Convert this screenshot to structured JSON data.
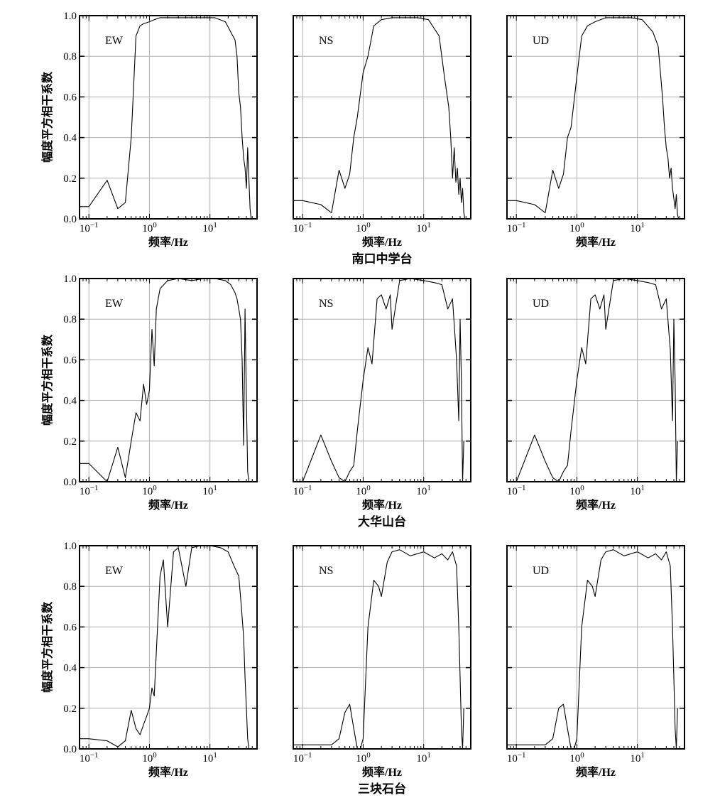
{
  "ylabel": "幅度平方相干系数",
  "xlabel": "频率/Hz",
  "components": [
    "EW",
    "NS",
    "UD"
  ],
  "rows": [
    {
      "station": "南口中学台"
    },
    {
      "station": "大华山台"
    },
    {
      "station": "三块石台"
    }
  ],
  "chart_data": {
    "type": "line",
    "xscale": "log",
    "xlim": [
      0.07,
      60
    ],
    "ylim": [
      0.0,
      1.0
    ],
    "grid": true,
    "x_ticks": [
      "10^-1",
      "10^0",
      "10^1"
    ],
    "y_ticks": [
      "0.0",
      "0.2",
      "0.4",
      "0.6",
      "0.8",
      "1.0"
    ],
    "panels": [
      {
        "station": "南口中学台",
        "component": "EW",
        "x": [
          0.07,
          0.1,
          0.2,
          0.3,
          0.4,
          0.5,
          0.6,
          0.7,
          0.8,
          1.0,
          1.2,
          1.5,
          2,
          3,
          5,
          8,
          12,
          18,
          22,
          26,
          28,
          30,
          32,
          34,
          36,
          38,
          40,
          42,
          44,
          46,
          48
        ],
        "y": [
          0.06,
          0.06,
          0.19,
          0.05,
          0.08,
          0.4,
          0.9,
          0.95,
          0.96,
          0.97,
          0.98,
          0.99,
          0.99,
          0.99,
          0.99,
          0.99,
          0.99,
          0.97,
          0.92,
          0.88,
          0.8,
          0.62,
          0.55,
          0.4,
          0.3,
          0.25,
          0.15,
          0.35,
          0.2,
          0.05,
          0.0
        ]
      },
      {
        "station": "南口中学台",
        "component": "NS",
        "x": [
          0.07,
          0.1,
          0.2,
          0.3,
          0.4,
          0.5,
          0.6,
          0.7,
          0.8,
          1.0,
          1.2,
          1.5,
          2,
          3,
          5,
          8,
          12,
          18,
          22,
          26,
          28,
          30,
          32,
          34,
          36,
          38,
          40,
          42,
          44,
          46,
          48
        ],
        "y": [
          0.09,
          0.09,
          0.07,
          0.03,
          0.24,
          0.15,
          0.22,
          0.4,
          0.5,
          0.72,
          0.8,
          0.95,
          0.98,
          0.99,
          0.99,
          0.99,
          0.98,
          0.9,
          0.7,
          0.55,
          0.4,
          0.2,
          0.35,
          0.18,
          0.25,
          0.12,
          0.2,
          0.08,
          0.15,
          0.03,
          0.0
        ]
      },
      {
        "station": "南口中学台",
        "component": "UD",
        "x": [
          0.07,
          0.1,
          0.2,
          0.3,
          0.4,
          0.5,
          0.6,
          0.7,
          0.8,
          1.0,
          1.2,
          1.5,
          2,
          3,
          5,
          8,
          12,
          18,
          22,
          26,
          28,
          30,
          32,
          34,
          36,
          38,
          40,
          42,
          44,
          46,
          48
        ],
        "y": [
          0.09,
          0.09,
          0.07,
          0.03,
          0.24,
          0.15,
          0.22,
          0.4,
          0.45,
          0.7,
          0.9,
          0.95,
          0.97,
          0.99,
          0.99,
          0.99,
          0.98,
          0.92,
          0.85,
          0.6,
          0.45,
          0.35,
          0.3,
          0.2,
          0.25,
          0.15,
          0.1,
          0.05,
          0.12,
          0.02,
          0.0
        ]
      },
      {
        "station": "大华山台",
        "component": "EW",
        "x": [
          0.07,
          0.1,
          0.2,
          0.3,
          0.4,
          0.5,
          0.6,
          0.7,
          0.8,
          0.9,
          1.0,
          1.1,
          1.2,
          1.3,
          1.5,
          2,
          3,
          5,
          8,
          12,
          18,
          22,
          26,
          28,
          30,
          32,
          34,
          36,
          38,
          40,
          42,
          44
        ],
        "y": [
          0.09,
          0.09,
          0.0,
          0.17,
          0.02,
          0.2,
          0.34,
          0.3,
          0.48,
          0.38,
          0.45,
          0.75,
          0.57,
          0.85,
          0.95,
          0.99,
          1.0,
          0.99,
          1.0,
          1.0,
          0.99,
          0.97,
          0.93,
          0.9,
          0.85,
          0.8,
          0.6,
          0.18,
          0.85,
          0.4,
          0.05,
          0.0
        ]
      },
      {
        "station": "大华山台",
        "component": "NS",
        "x": [
          0.07,
          0.1,
          0.2,
          0.3,
          0.4,
          0.5,
          0.6,
          0.7,
          0.8,
          1.0,
          1.2,
          1.4,
          1.7,
          2,
          2.4,
          2.8,
          3,
          4,
          6,
          10,
          15,
          20,
          25,
          30,
          35,
          38,
          40,
          42,
          44,
          46
        ],
        "y": [
          0.0,
          0.0,
          0.23,
          0.1,
          0.02,
          0.0,
          0.05,
          0.08,
          0.25,
          0.5,
          0.66,
          0.58,
          0.9,
          0.92,
          0.85,
          0.92,
          0.75,
          0.99,
          1.0,
          0.99,
          0.98,
          0.97,
          0.85,
          0.9,
          0.6,
          0.3,
          0.8,
          0.5,
          0.0,
          0.2
        ]
      },
      {
        "station": "大华山台",
        "component": "UD",
        "x": [
          0.07,
          0.1,
          0.2,
          0.3,
          0.4,
          0.5,
          0.6,
          0.7,
          0.8,
          1.0,
          1.2,
          1.4,
          1.7,
          2,
          2.4,
          2.8,
          3,
          4,
          6,
          10,
          15,
          20,
          25,
          30,
          35,
          38,
          40,
          42,
          44,
          46
        ],
        "y": [
          0.0,
          0.0,
          0.23,
          0.1,
          0.02,
          0.0,
          0.05,
          0.08,
          0.25,
          0.5,
          0.66,
          0.58,
          0.9,
          0.92,
          0.85,
          0.92,
          0.75,
          0.99,
          1.0,
          0.99,
          0.98,
          0.97,
          0.85,
          0.9,
          0.65,
          0.3,
          0.8,
          0.5,
          0.0,
          0.2
        ]
      },
      {
        "station": "三块石台",
        "component": "EW",
        "x": [
          0.07,
          0.1,
          0.2,
          0.3,
          0.4,
          0.5,
          0.6,
          0.7,
          0.8,
          0.9,
          1.0,
          1.1,
          1.2,
          1.3,
          1.5,
          1.7,
          2,
          2.5,
          3,
          4,
          5,
          7,
          10,
          15,
          20,
          25,
          30,
          33,
          36,
          38,
          40,
          42,
          44
        ],
        "y": [
          0.05,
          0.05,
          0.04,
          0.01,
          0.04,
          0.19,
          0.1,
          0.07,
          0.12,
          0.16,
          0.2,
          0.3,
          0.26,
          0.48,
          0.85,
          0.93,
          0.6,
          0.97,
          0.99,
          0.8,
          0.99,
          1.0,
          1.0,
          0.99,
          0.97,
          0.9,
          0.85,
          0.7,
          0.55,
          0.35,
          0.2,
          0.05,
          0.0
        ]
      },
      {
        "station": "三块石台",
        "component": "NS",
        "x": [
          0.07,
          0.1,
          0.2,
          0.3,
          0.4,
          0.5,
          0.6,
          0.7,
          0.8,
          0.9,
          1.0,
          1.2,
          1.5,
          1.8,
          2,
          2.5,
          3,
          4,
          6,
          10,
          15,
          20,
          25,
          30,
          35,
          38,
          40,
          42,
          44,
          46
        ],
        "y": [
          0.02,
          0.02,
          0.02,
          0.02,
          0.05,
          0.18,
          0.22,
          0.1,
          0.0,
          0.0,
          0.05,
          0.6,
          0.83,
          0.8,
          0.75,
          0.92,
          0.97,
          0.98,
          0.95,
          0.97,
          0.94,
          0.96,
          0.93,
          0.97,
          0.9,
          0.6,
          0.35,
          0.1,
          0.0,
          0.2
        ]
      },
      {
        "station": "三块石台",
        "component": "UD",
        "x": [
          0.07,
          0.1,
          0.2,
          0.3,
          0.4,
          0.5,
          0.6,
          0.7,
          0.8,
          0.9,
          1.0,
          1.2,
          1.5,
          1.8,
          2,
          2.5,
          3,
          4,
          6,
          10,
          15,
          20,
          25,
          30,
          35,
          38,
          40,
          42,
          44,
          46
        ],
        "y": [
          0.02,
          0.02,
          0.02,
          0.02,
          0.05,
          0.2,
          0.22,
          0.1,
          0.0,
          0.0,
          0.05,
          0.6,
          0.83,
          0.8,
          0.75,
          0.93,
          0.97,
          0.98,
          0.95,
          0.97,
          0.94,
          0.96,
          0.93,
          0.97,
          0.9,
          0.6,
          0.35,
          0.1,
          0.0,
          0.2
        ]
      }
    ]
  }
}
